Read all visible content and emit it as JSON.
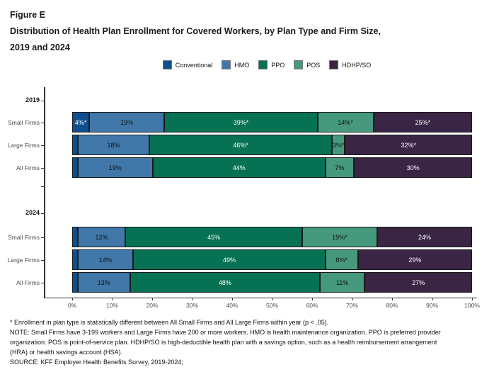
{
  "header": {
    "figure_label": "Figure E",
    "title_lines": [
      "Distribution of Health Plan Enrollment for Covered Workers, by Plan Type and Firm Size,",
      "2019 and 2024"
    ]
  },
  "chart_data": {
    "type": "bar",
    "stacked": true,
    "orientation": "horizontal",
    "x_axis": {
      "min": 0,
      "max": 100,
      "ticks": [
        "0%",
        "10%",
        "20%",
        "30%",
        "40%",
        "50%",
        "60%",
        "70%",
        "80%",
        "90%",
        "100%"
      ]
    },
    "legend_position": "top-center",
    "legend": [
      {
        "label": "Conventional",
        "color": "#0E4F8E",
        "text_color": "#ffffff"
      },
      {
        "label": "HMO",
        "color": "#4177A9",
        "text_color": "#111111"
      },
      {
        "label": "PPO",
        "color": "#077154",
        "text_color": "#ffffff"
      },
      {
        "label": "POS",
        "color": "#46997C",
        "text_color": "#111111"
      },
      {
        "label": "HDHP/SO",
        "color": "#3A2545",
        "text_color": "#ffffff"
      }
    ],
    "groups": [
      {
        "year": "2019",
        "rows": [
          {
            "label": "Small Firms",
            "segments": [
              {
                "value": 4,
                "label": "4%*"
              },
              {
                "value": 19,
                "label": "19%"
              },
              {
                "value": 39,
                "label": "39%*"
              },
              {
                "value": 14,
                "label": "14%*"
              },
              {
                "value": 25,
                "label": "25%*"
              }
            ]
          },
          {
            "label": "Large Firms",
            "segments": [
              {
                "value": 1,
                "label": ""
              },
              {
                "value": 18,
                "label": "18%"
              },
              {
                "value": 46,
                "label": "46%*"
              },
              {
                "value": 3,
                "label": "3%*"
              },
              {
                "value": 32,
                "label": "32%*"
              }
            ]
          },
          {
            "label": "All Firms",
            "segments": [
              {
                "value": 1,
                "label": ""
              },
              {
                "value": 19,
                "label": "19%"
              },
              {
                "value": 44,
                "label": "44%"
              },
              {
                "value": 7,
                "label": "7%"
              },
              {
                "value": 30,
                "label": "30%"
              }
            ]
          }
        ]
      },
      {
        "year": "2024",
        "rows": [
          {
            "label": "Small Firms",
            "segments": [
              {
                "value": 1,
                "label": ""
              },
              {
                "value": 12,
                "label": "12%"
              },
              {
                "value": 45,
                "label": "45%"
              },
              {
                "value": 19,
                "label": "19%*"
              },
              {
                "value": 24,
                "label": "24%"
              }
            ]
          },
          {
            "label": "Large Firms",
            "segments": [
              {
                "value": 1,
                "label": ""
              },
              {
                "value": 14,
                "label": "14%"
              },
              {
                "value": 49,
                "label": "49%"
              },
              {
                "value": 8,
                "label": "8%*"
              },
              {
                "value": 29,
                "label": "29%"
              }
            ]
          },
          {
            "label": "All Firms",
            "segments": [
              {
                "value": 1,
                "label": ""
              },
              {
                "value": 13,
                "label": "13%"
              },
              {
                "value": 48,
                "label": "48%"
              },
              {
                "value": 11,
                "label": "11%"
              },
              {
                "value": 27,
                "label": "27%"
              }
            ]
          }
        ]
      }
    ]
  },
  "notes": [
    "* Enrollment in plan type is statistically different between All Small Firms and All Large Firms within year (p < .05).",
    "NOTE: Small Firms have 3-199 workers and Large Firms have 200 or more workers. HMO is health maintenance organization. PPO is preferred provider",
    "organization. POS is point-of-service plan. HDHP/SO is high-deductible health plan with a savings option, such as a health reimbursement arrangement",
    "(HRA) or health savings account (HSA).",
    "SOURCE: KFF Employer Health Benefits Survey, 2019-2024;"
  ]
}
